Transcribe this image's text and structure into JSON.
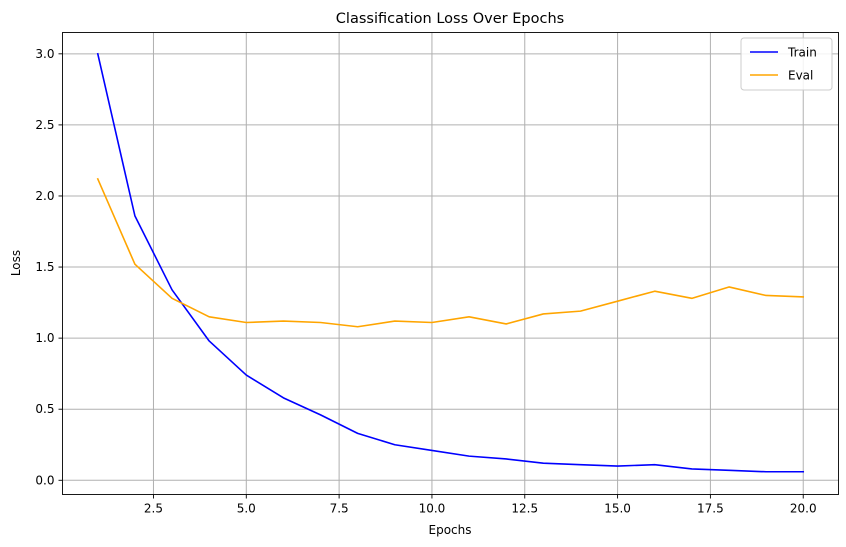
{
  "chart_data": {
    "type": "line",
    "title": "Classification Loss Over Epochs",
    "xlabel": "Epochs",
    "ylabel": "Loss",
    "xlim": [
      0.05,
      20.95
    ],
    "ylim": [
      -0.1,
      3.15
    ],
    "xticks": [
      2.5,
      5.0,
      7.5,
      10.0,
      12.5,
      15.0,
      17.5,
      20.0
    ],
    "xtick_labels": [
      "2.5",
      "5.0",
      "7.5",
      "10.0",
      "12.5",
      "15.0",
      "17.5",
      "20.0"
    ],
    "yticks": [
      0.0,
      0.5,
      1.0,
      1.5,
      2.0,
      2.5,
      3.0
    ],
    "ytick_labels": [
      "0.0",
      "0.5",
      "1.0",
      "1.5",
      "2.0",
      "2.5",
      "3.0"
    ],
    "grid": true,
    "legend_position": "top-right",
    "x": [
      1,
      2,
      3,
      4,
      5,
      6,
      7,
      8,
      9,
      10,
      11,
      12,
      13,
      14,
      15,
      16,
      17,
      18,
      19,
      20
    ],
    "series": [
      {
        "name": "Train",
        "color": "#0000ff",
        "values": [
          3.0,
          1.86,
          1.34,
          0.98,
          0.74,
          0.58,
          0.46,
          0.33,
          0.25,
          0.21,
          0.17,
          0.15,
          0.12,
          0.11,
          0.1,
          0.11,
          0.08,
          0.07,
          0.06,
          0.06
        ]
      },
      {
        "name": "Eval",
        "color": "#ffa500",
        "values": [
          2.12,
          1.52,
          1.28,
          1.15,
          1.11,
          1.12,
          1.11,
          1.08,
          1.12,
          1.11,
          1.15,
          1.1,
          1.17,
          1.19,
          1.26,
          1.33,
          1.28,
          1.36,
          1.3,
          1.29
        ]
      }
    ]
  }
}
